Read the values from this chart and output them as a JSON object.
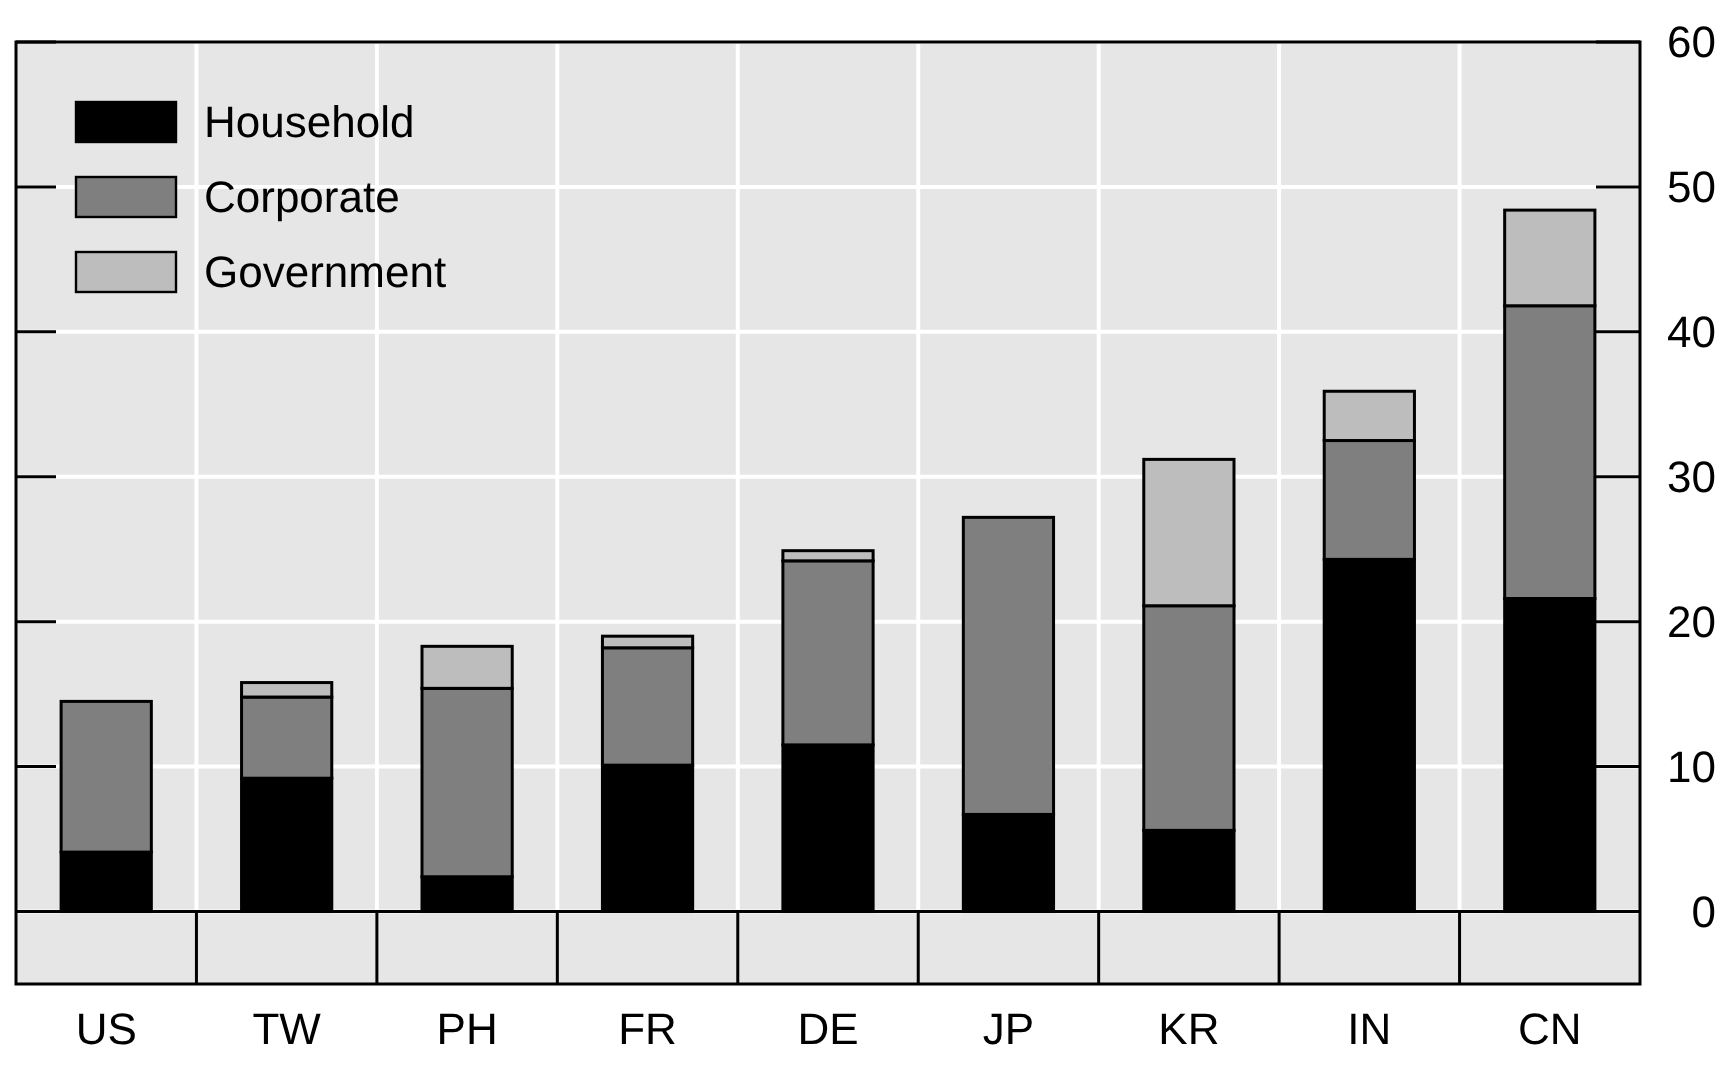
{
  "chart_data": {
    "type": "bar",
    "stacked": true,
    "categories": [
      "US",
      "TW",
      "PH",
      "FR",
      "DE",
      "JP",
      "KR",
      "IN",
      "CN"
    ],
    "series": [
      {
        "name": "Household",
        "color": "#000000",
        "values": [
          4.1,
          9.2,
          2.4,
          10.1,
          11.5,
          6.7,
          5.6,
          24.3,
          21.6
        ]
      },
      {
        "name": "Corporate",
        "color": "#7f7f7f",
        "values": [
          10.4,
          5.6,
          13.0,
          8.1,
          12.7,
          20.5,
          15.5,
          8.2,
          20.2
        ]
      },
      {
        "name": "Government",
        "color": "#bdbdbd",
        "values": [
          null,
          1.0,
          2.9,
          0.8,
          0.7,
          null,
          10.1,
          3.4,
          6.6
        ]
      }
    ],
    "ylim": [
      -5,
      60
    ],
    "yticks": [
      0,
      10,
      20,
      30,
      40,
      50,
      60
    ],
    "grid": true,
    "legend": "top left"
  }
}
